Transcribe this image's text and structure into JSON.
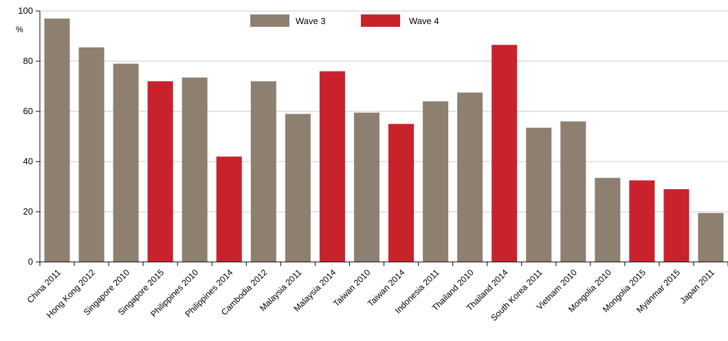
{
  "chart_data": {
    "type": "bar",
    "ylabel": "%",
    "ylim": [
      0,
      100
    ],
    "yticks": [
      0,
      20,
      40,
      60,
      80,
      100
    ],
    "grid": true,
    "legend_position": "top-center",
    "series": [
      {
        "name": "Wave 3",
        "color": "#8e8070"
      },
      {
        "name": "Wave 4",
        "color": "#c8232c"
      }
    ],
    "bars": [
      {
        "label": "China 2011",
        "value": 97,
        "series": "Wave 3"
      },
      {
        "label": "Hong Kong 2012",
        "value": 85.5,
        "series": "Wave 3"
      },
      {
        "label": "Singapore 2010",
        "value": 79,
        "series": "Wave 3"
      },
      {
        "label": "Singapore 2015",
        "value": 72,
        "series": "Wave 4"
      },
      {
        "label": "Philippines 2010",
        "value": 73.5,
        "series": "Wave 3"
      },
      {
        "label": "Philippines 2014",
        "value": 42,
        "series": "Wave 4"
      },
      {
        "label": "Cambodia 2012",
        "value": 72,
        "series": "Wave 3"
      },
      {
        "label": "Malaysia 2011",
        "value": 59,
        "series": "Wave 3"
      },
      {
        "label": "Malaysia 2014",
        "value": 76,
        "series": "Wave 4"
      },
      {
        "label": "Taiwan 2010",
        "value": 59.5,
        "series": "Wave 3"
      },
      {
        "label": "Taiwan 2014",
        "value": 55,
        "series": "Wave 4"
      },
      {
        "label": "Indonesia 2011",
        "value": 64,
        "series": "Wave 3"
      },
      {
        "label": "Thailand 2010",
        "value": 67.5,
        "series": "Wave 3"
      },
      {
        "label": "Thailand 2014",
        "value": 86.5,
        "series": "Wave 4"
      },
      {
        "label": "South Korea 2011",
        "value": 53.5,
        "series": "Wave 3"
      },
      {
        "label": "Vietnam 2010",
        "value": 56,
        "series": "Wave 3"
      },
      {
        "label": "Mongolia 2010",
        "value": 33.5,
        "series": "Wave 3"
      },
      {
        "label": "Mongolia 2015",
        "value": 32.5,
        "series": "Wave 4"
      },
      {
        "label": "Myanmar 2015",
        "value": 29,
        "series": "Wave 4"
      },
      {
        "label": "Japan 2011",
        "value": 19.5,
        "series": "Wave 3"
      }
    ]
  }
}
